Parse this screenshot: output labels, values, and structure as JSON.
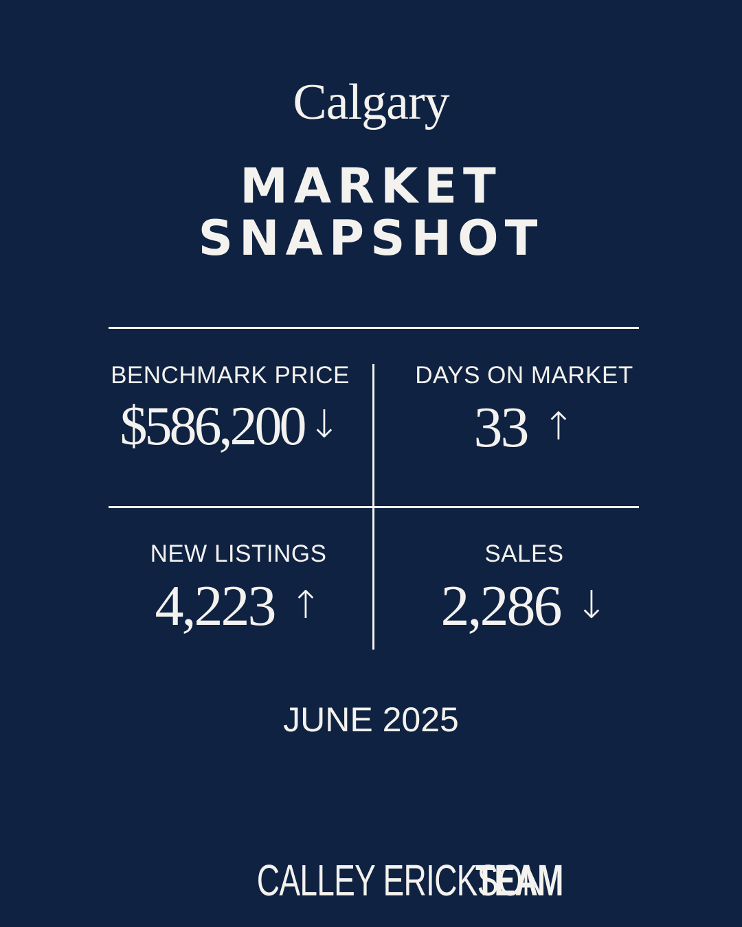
{
  "city": "Calgary",
  "headline": {
    "line1": "MARKET",
    "line2": "SNAPSHOT"
  },
  "stats": [
    {
      "label": "BENCHMARK PRICE",
      "value": "$586,200",
      "trend": "down",
      "arrow": "↓"
    },
    {
      "label": "DAYS ON MARKET",
      "value": "33",
      "trend": "up",
      "arrow": "↑"
    },
    {
      "label": "NEW LISTINGS",
      "value": "4,223",
      "trend": "up",
      "arrow": "↑"
    },
    {
      "label": "SALES",
      "value": "2,286",
      "trend": "down",
      "arrow": "↓"
    }
  ],
  "period": "JUNE 2025",
  "brand": {
    "name_regular": "CALLEY ERICKSON",
    "name_bold": "TEAM"
  },
  "colors": {
    "background": "#0f2242",
    "foreground": "#f4f2ee"
  }
}
